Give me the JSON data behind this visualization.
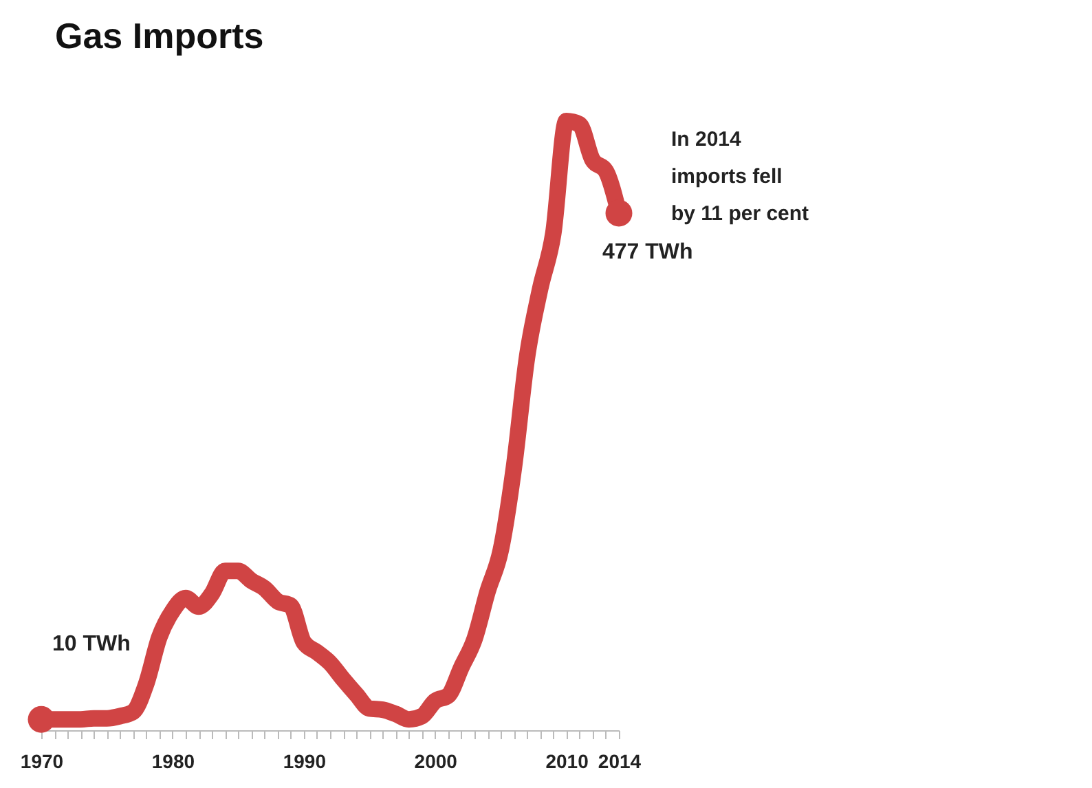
{
  "chart_data": {
    "type": "line",
    "title": "Gas Imports",
    "x": [
      1970,
      1971,
      1972,
      1973,
      1974,
      1975,
      1976,
      1977,
      1978,
      1979,
      1980,
      1981,
      1982,
      1983,
      1984,
      1985,
      1986,
      1987,
      1988,
      1989,
      1990,
      1991,
      1992,
      1993,
      1994,
      1995,
      1996,
      1997,
      1998,
      1999,
      2000,
      2001,
      2002,
      2003,
      2004,
      2005,
      2006,
      2007,
      2008,
      2009,
      2010,
      2011,
      2012,
      2013,
      2014
    ],
    "series": [
      {
        "color": "#d04444",
        "values": [
          10,
          10,
          10,
          10,
          11,
          11,
          13,
          17,
          43,
          86,
          110,
          122,
          114,
          126,
          147,
          147,
          138,
          131,
          119,
          115,
          81,
          72,
          62,
          47,
          33,
          20,
          19,
          15,
          10,
          13,
          27,
          32,
          58,
          84,
          128,
          166,
          242,
          344,
          407,
          458,
          562,
          559,
          526,
          516,
          477
        ],
        "value_labels": [
          "10 TWh",
          null,
          null,
          null,
          null,
          null,
          null,
          null,
          null,
          null,
          null,
          null,
          null,
          null,
          null,
          null,
          null,
          null,
          null,
          null,
          null,
          null,
          null,
          null,
          null,
          null,
          null,
          null,
          null,
          null,
          null,
          null,
          null,
          null,
          null,
          null,
          null,
          null,
          null,
          null,
          null,
          null,
          null,
          null,
          "477 TWh"
        ]
      }
    ],
    "xlim": [
      1970,
      2014
    ],
    "xticks": [
      1970,
      {
        "value": 1971,
        "label": null
      },
      {
        "value": 1972,
        "label": null
      },
      {
        "value": 1973,
        "label": null
      },
      {
        "value": 1974,
        "label": null
      },
      {
        "value": 1975,
        "label": null
      },
      {
        "value": 1976,
        "label": null
      },
      {
        "value": 1977,
        "label": null
      },
      {
        "value": 1978,
        "label": null
      },
      {
        "value": 1979,
        "label": null
      },
      1980,
      {
        "value": 1981,
        "label": null
      },
      {
        "value": 1982,
        "label": null
      },
      {
        "value": 1983,
        "label": null
      },
      {
        "value": 1984,
        "label": null
      },
      {
        "value": 1985,
        "label": null
      },
      {
        "value": 1986,
        "label": null
      },
      {
        "value": 1987,
        "label": null
      },
      {
        "value": 1988,
        "label": null
      },
      {
        "value": 1989,
        "label": null
      },
      1990,
      {
        "value": 1991,
        "label": null
      },
      {
        "value": 1992,
        "label": null
      },
      {
        "value": 1993,
        "label": null
      },
      {
        "value": 1994,
        "label": null
      },
      {
        "value": 1995,
        "label": null
      },
      {
        "value": 1996,
        "label": null
      },
      {
        "value": 1997,
        "label": null
      },
      {
        "value": 1998,
        "label": null
      },
      {
        "value": 1999,
        "label": null
      },
      2000,
      {
        "value": 2001,
        "label": null
      },
      {
        "value": 2002,
        "label": null
      },
      {
        "value": 2003,
        "label": null
      },
      {
        "value": 2004,
        "label": null
      },
      {
        "value": 2005,
        "label": null
      },
      {
        "value": 2006,
        "label": null
      },
      {
        "value": 2007,
        "label": null
      },
      {
        "value": 2008,
        "label": null
      },
      {
        "value": 2009,
        "label": null
      },
      2010,
      {
        "value": 2011,
        "label": null
      },
      {
        "value": 2012,
        "label": null
      },
      {
        "value": 2013,
        "label": null
      },
      2014
    ],
    "tick_labels": "x",
    "grid": false,
    "legend": false,
    "annotations": [
      "In 2014 imports fell by 11 per cent"
    ]
  }
}
